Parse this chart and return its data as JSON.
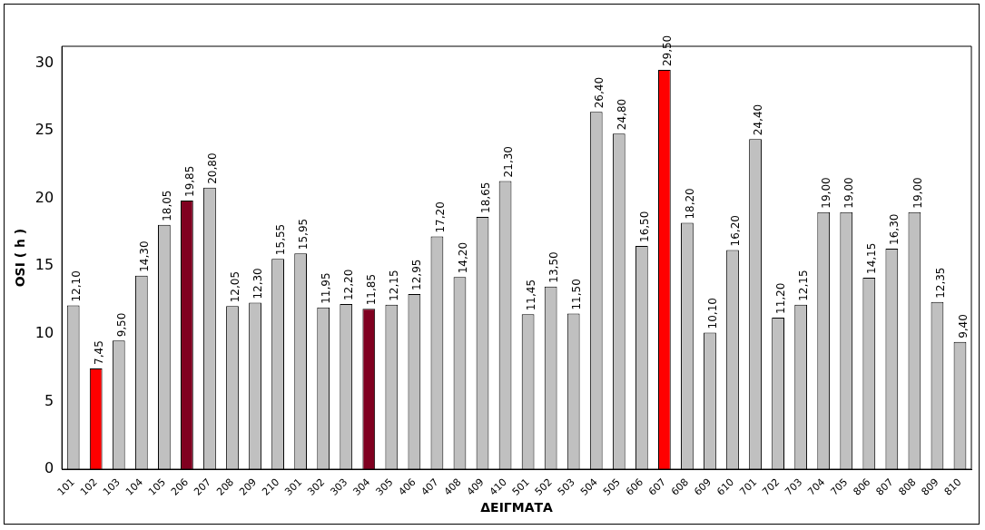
{
  "chart_data": {
    "type": "bar",
    "xlabel": "ΔΕΙΓΜΑΤΑ",
    "ylabel": "OSI ( h )",
    "categories": [
      "101",
      "102",
      "103",
      "104",
      "105",
      "206",
      "207",
      "208",
      "209",
      "210",
      "301",
      "302",
      "303",
      "304",
      "305",
      "406",
      "407",
      "408",
      "409",
      "410",
      "501",
      "502",
      "503",
      "504",
      "505",
      "606",
      "607",
      "608",
      "609",
      "610",
      "701",
      "702",
      "703",
      "704",
      "705",
      "806",
      "807",
      "808",
      "809",
      "810"
    ],
    "values": [
      12.1,
      7.45,
      9.5,
      14.3,
      18.05,
      19.85,
      20.8,
      12.05,
      12.3,
      15.55,
      15.95,
      11.95,
      12.2,
      11.85,
      12.15,
      12.95,
      17.2,
      14.2,
      18.65,
      21.3,
      11.45,
      13.5,
      11.5,
      26.4,
      24.8,
      16.5,
      29.5,
      18.2,
      10.1,
      16.2,
      24.4,
      11.2,
      12.15,
      19.0,
      19.0,
      14.15,
      16.3,
      19.0,
      12.35,
      9.4
    ],
    "value_labels": [
      "12,10",
      "7,45",
      "9,50",
      "14,30",
      "18,05",
      "19,85",
      "20,80",
      "12,05",
      "12,30",
      "15,55",
      "15,95",
      "11,95",
      "12,20",
      "11,85",
      "12,15",
      "12,95",
      "17,20",
      "14,20",
      "18,65",
      "21,30",
      "11,45",
      "13,50",
      "11,50",
      "26,40",
      "24,80",
      "16,50",
      "29,50",
      "18,20",
      "10,10",
      "16,20",
      "24,40",
      "11,20",
      "12,15",
      "19,00",
      "19,00",
      "14,15",
      "16,30",
      "19,00",
      "12,35",
      "9,40"
    ],
    "colors": [
      "#c0c0c0",
      "#ff0000",
      "#c0c0c0",
      "#c0c0c0",
      "#c0c0c0",
      "#800020",
      "#c0c0c0",
      "#c0c0c0",
      "#c0c0c0",
      "#c0c0c0",
      "#c0c0c0",
      "#c0c0c0",
      "#c0c0c0",
      "#800020",
      "#c0c0c0",
      "#c0c0c0",
      "#c0c0c0",
      "#c0c0c0",
      "#c0c0c0",
      "#c0c0c0",
      "#c0c0c0",
      "#c0c0c0",
      "#c0c0c0",
      "#c0c0c0",
      "#c0c0c0",
      "#c0c0c0",
      "#ff0000",
      "#c0c0c0",
      "#c0c0c0",
      "#c0c0c0",
      "#c0c0c0",
      "#c0c0c0",
      "#c0c0c0",
      "#c0c0c0",
      "#c0c0c0",
      "#c0c0c0",
      "#c0c0c0",
      "#c0c0c0",
      "#c0c0c0",
      "#c0c0c0"
    ],
    "ylim": [
      0,
      31.25
    ],
    "yticks": [
      0,
      5,
      10,
      15,
      20,
      25,
      30
    ],
    "grid": false,
    "legend": false
  }
}
